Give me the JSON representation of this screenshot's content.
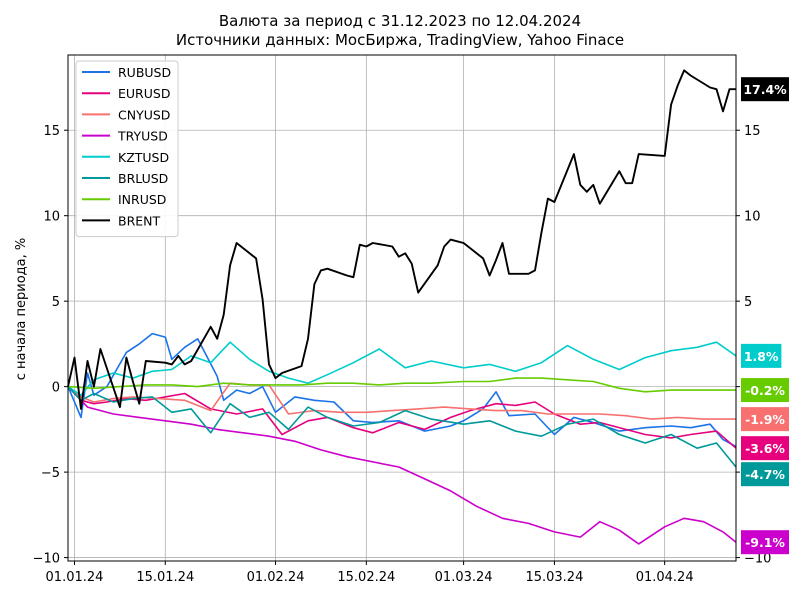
{
  "chart_data": {
    "type": "line",
    "title": "Валюта за период с 31.12.2023 по 12.04.2024",
    "subtitle": "Источники данных: МосБиржа, TradingView, Yahoo Finace",
    "ylabel": "с начала периода, %",
    "xlabel": "",
    "x_start": "2023-12-31",
    "x_end": "2024-04-12",
    "xlim": [
      "2023-12-31",
      "2024-04-12"
    ],
    "ylim": [
      -10.2,
      19.4
    ],
    "yticks": [
      -10,
      -5,
      0,
      5,
      10,
      15
    ],
    "ytick_labels": [
      "−10",
      "−5",
      "0",
      "5",
      "10",
      "15"
    ],
    "xticks": [
      "2024-01-01",
      "2024-01-15",
      "2024-02-01",
      "2024-02-15",
      "2024-03-01",
      "2024-03-15",
      "2024-04-01"
    ],
    "xtick_labels": [
      "01.01.24",
      "15.01.24",
      "01.02.24",
      "15.02.24",
      "01.03.24",
      "15.03.24",
      "01.04.24"
    ],
    "grid": true,
    "legend_position": "top-left",
    "series": [
      {
        "name": "RUBUSD",
        "color": "#1a73e8",
        "dates": [
          "2023-12-31",
          "2024-01-02",
          "2024-01-03",
          "2024-01-04",
          "2024-01-06",
          "2024-01-09",
          "2024-01-11",
          "2024-01-13",
          "2024-01-15",
          "2024-01-16",
          "2024-01-18",
          "2024-01-20",
          "2024-01-23",
          "2024-01-24",
          "2024-01-26",
          "2024-01-28",
          "2024-01-30",
          "2024-02-01",
          "2024-02-04",
          "2024-02-07",
          "2024-02-10",
          "2024-02-13",
          "2024-02-16",
          "2024-02-20",
          "2024-02-24",
          "2024-02-28",
          "2024-03-01",
          "2024-03-04",
          "2024-03-06",
          "2024-03-08",
          "2024-03-12",
          "2024-03-15",
          "2024-03-18",
          "2024-03-21",
          "2024-03-25",
          "2024-03-29",
          "2024-04-02",
          "2024-04-05",
          "2024-04-08",
          "2024-04-10",
          "2024-04-12"
        ],
        "values": [
          0,
          -1.8,
          0.8,
          -0.5,
          0,
          2.0,
          2.5,
          3.1,
          2.9,
          1.6,
          2.3,
          2.8,
          0.6,
          -0.8,
          -0.2,
          -0.4,
          0,
          -1.5,
          -0.6,
          -0.8,
          -0.9,
          -2.0,
          -2.1,
          -2.0,
          -2.6,
          -2.3,
          -2.0,
          -1.3,
          -0.3,
          -1.7,
          -1.6,
          -2.8,
          -1.8,
          -2.1,
          -2.6,
          -2.4,
          -2.3,
          -2.4,
          -2.2,
          -3.1,
          -3.5
        ]
      },
      {
        "name": "EURUSD",
        "color": "#e6007e",
        "dates": [
          "2023-12-31",
          "2024-01-02",
          "2024-01-04",
          "2024-01-06",
          "2024-01-09",
          "2024-01-12",
          "2024-01-15",
          "2024-01-18",
          "2024-01-22",
          "2024-01-26",
          "2024-01-30",
          "2024-02-02",
          "2024-02-06",
          "2024-02-09",
          "2024-02-13",
          "2024-02-16",
          "2024-02-20",
          "2024-02-24",
          "2024-02-28",
          "2024-03-02",
          "2024-03-06",
          "2024-03-09",
          "2024-03-12",
          "2024-03-15",
          "2024-03-19",
          "2024-03-22",
          "2024-03-26",
          "2024-03-29",
          "2024-04-02",
          "2024-04-05",
          "2024-04-09",
          "2024-04-12"
        ],
        "values": [
          0,
          -0.8,
          -1.0,
          -0.9,
          -0.7,
          -0.8,
          -0.6,
          -0.4,
          -1.3,
          -1.6,
          -1.3,
          -2.8,
          -2.0,
          -1.8,
          -2.4,
          -2.7,
          -2.1,
          -2.5,
          -1.8,
          -1.4,
          -1.0,
          -1.1,
          -0.9,
          -1.6,
          -2.2,
          -2.1,
          -2.5,
          -2.8,
          -3.0,
          -2.8,
          -2.6,
          -3.6
        ]
      },
      {
        "name": "CNYUSD",
        "color": "#f87070",
        "dates": [
          "2023-12-31",
          "2024-01-02",
          "2024-01-04",
          "2024-01-07",
          "2024-01-10",
          "2024-01-14",
          "2024-01-18",
          "2024-01-22",
          "2024-01-25",
          "2024-01-28",
          "2024-01-31",
          "2024-02-03",
          "2024-02-07",
          "2024-02-11",
          "2024-02-15",
          "2024-02-19",
          "2024-02-23",
          "2024-02-27",
          "2024-03-02",
          "2024-03-06",
          "2024-03-10",
          "2024-03-14",
          "2024-03-18",
          "2024-03-22",
          "2024-03-26",
          "2024-03-30",
          "2024-04-03",
          "2024-04-07",
          "2024-04-12"
        ],
        "values": [
          0,
          -0.6,
          -0.9,
          -0.7,
          -0.6,
          -0.7,
          -0.8,
          -1.4,
          0.2,
          0.1,
          0.1,
          -1.6,
          -1.4,
          -1.5,
          -1.5,
          -1.4,
          -1.3,
          -1.2,
          -1.3,
          -1.4,
          -1.4,
          -1.6,
          -1.6,
          -1.6,
          -1.7,
          -1.9,
          -1.8,
          -1.9,
          -1.9
        ]
      },
      {
        "name": "TRYUSD",
        "color": "#cc00cc",
        "dates": [
          "2023-12-31",
          "2024-01-03",
          "2024-01-07",
          "2024-01-11",
          "2024-01-15",
          "2024-01-19",
          "2024-01-23",
          "2024-01-27",
          "2024-01-31",
          "2024-02-04",
          "2024-02-08",
          "2024-02-12",
          "2024-02-16",
          "2024-02-20",
          "2024-02-24",
          "2024-02-28",
          "2024-03-03",
          "2024-03-07",
          "2024-03-11",
          "2024-03-15",
          "2024-03-19",
          "2024-03-22",
          "2024-03-25",
          "2024-03-28",
          "2024-04-01",
          "2024-04-04",
          "2024-04-07",
          "2024-04-10",
          "2024-04-12"
        ],
        "values": [
          0,
          -1.2,
          -1.6,
          -1.8,
          -2.0,
          -2.2,
          -2.5,
          -2.7,
          -2.9,
          -3.2,
          -3.7,
          -4.1,
          -4.4,
          -4.7,
          -5.4,
          -6.1,
          -7.0,
          -7.7,
          -8.0,
          -8.5,
          -8.8,
          -7.9,
          -8.4,
          -9.2,
          -8.2,
          -7.7,
          -7.9,
          -8.5,
          -9.1
        ]
      },
      {
        "name": "KZTUSD",
        "color": "#00cccc",
        "dates": [
          "2023-12-31",
          "2024-01-02",
          "2024-01-04",
          "2024-01-07",
          "2024-01-10",
          "2024-01-13",
          "2024-01-16",
          "2024-01-19",
          "2024-01-22",
          "2024-01-25",
          "2024-01-28",
          "2024-01-31",
          "2024-02-03",
          "2024-02-06",
          "2024-02-09",
          "2024-02-13",
          "2024-02-17",
          "2024-02-21",
          "2024-02-25",
          "2024-03-01",
          "2024-03-05",
          "2024-03-09",
          "2024-03-13",
          "2024-03-17",
          "2024-03-21",
          "2024-03-25",
          "2024-03-29",
          "2024-04-02",
          "2024-04-06",
          "2024-04-09",
          "2024-04-12"
        ],
        "values": [
          0,
          -0.5,
          0.4,
          0.8,
          0.5,
          0.9,
          1.0,
          1.8,
          1.4,
          2.6,
          1.6,
          0.9,
          0.5,
          0.2,
          0.7,
          1.4,
          2.2,
          1.1,
          1.5,
          1.1,
          1.3,
          0.9,
          1.4,
          2.4,
          1.6,
          1.0,
          1.7,
          2.1,
          2.3,
          2.6,
          1.8
        ]
      },
      {
        "name": "BRLUSD",
        "color": "#00999a",
        "dates": [
          "2023-12-31",
          "2024-01-02",
          "2024-01-04",
          "2024-01-07",
          "2024-01-10",
          "2024-01-13",
          "2024-01-16",
          "2024-01-19",
          "2024-01-22",
          "2024-01-25",
          "2024-01-28",
          "2024-01-31",
          "2024-02-03",
          "2024-02-06",
          "2024-02-09",
          "2024-02-13",
          "2024-02-17",
          "2024-02-21",
          "2024-02-25",
          "2024-03-01",
          "2024-03-05",
          "2024-03-09",
          "2024-03-13",
          "2024-03-17",
          "2024-03-21",
          "2024-03-25",
          "2024-03-29",
          "2024-04-02",
          "2024-04-06",
          "2024-04-09",
          "2024-04-12"
        ],
        "values": [
          0,
          -0.8,
          -0.4,
          -0.9,
          -0.7,
          -0.6,
          -1.5,
          -1.3,
          -2.7,
          -1.0,
          -1.8,
          -1.5,
          -2.5,
          -1.2,
          -1.8,
          -2.3,
          -2.1,
          -1.4,
          -1.9,
          -2.2,
          -2.0,
          -2.6,
          -2.9,
          -2.2,
          -1.9,
          -2.8,
          -3.3,
          -2.8,
          -3.6,
          -3.3,
          -4.7
        ]
      },
      {
        "name": "INRUSD",
        "color": "#66cc00",
        "dates": [
          "2023-12-31",
          "2024-01-04",
          "2024-01-08",
          "2024-01-12",
          "2024-01-16",
          "2024-01-20",
          "2024-01-24",
          "2024-01-28",
          "2024-02-01",
          "2024-02-05",
          "2024-02-09",
          "2024-02-13",
          "2024-02-17",
          "2024-02-21",
          "2024-02-25",
          "2024-03-01",
          "2024-03-05",
          "2024-03-09",
          "2024-03-13",
          "2024-03-17",
          "2024-03-21",
          "2024-03-25",
          "2024-03-29",
          "2024-04-02",
          "2024-04-06",
          "2024-04-09",
          "2024-04-12"
        ],
        "values": [
          0,
          -0.1,
          0,
          0.1,
          0.1,
          0.0,
          0.2,
          0.1,
          0.1,
          0.1,
          0.2,
          0.2,
          0.1,
          0.2,
          0.2,
          0.3,
          0.3,
          0.5,
          0.5,
          0.4,
          0.3,
          -0.1,
          -0.3,
          -0.2,
          -0.2,
          -0.2,
          -0.2
        ]
      },
      {
        "name": "BRENT",
        "color": "#000000",
        "dates": [
          "2023-12-31",
          "2024-01-01",
          "2024-01-02",
          "2024-01-03",
          "2024-01-04",
          "2024-01-05",
          "2024-01-08",
          "2024-01-09",
          "2024-01-10",
          "2024-01-11",
          "2024-01-12",
          "2024-01-15",
          "2024-01-16",
          "2024-01-17",
          "2024-01-18",
          "2024-01-19",
          "2024-01-22",
          "2024-01-23",
          "2024-01-24",
          "2024-01-25",
          "2024-01-26",
          "2024-01-29",
          "2024-01-30",
          "2024-01-31",
          "2024-02-01",
          "2024-02-02",
          "2024-02-05",
          "2024-02-06",
          "2024-02-07",
          "2024-02-08",
          "2024-02-09",
          "2024-02-12",
          "2024-02-13",
          "2024-02-14",
          "2024-02-15",
          "2024-02-16",
          "2024-02-19",
          "2024-02-20",
          "2024-02-21",
          "2024-02-22",
          "2024-02-23",
          "2024-02-26",
          "2024-02-27",
          "2024-02-28",
          "2024-02-29",
          "2024-03-01",
          "2024-03-04",
          "2024-03-05",
          "2024-03-06",
          "2024-03-07",
          "2024-03-08",
          "2024-03-11",
          "2024-03-12",
          "2024-03-13",
          "2024-03-14",
          "2024-03-15",
          "2024-03-18",
          "2024-03-19",
          "2024-03-20",
          "2024-03-21",
          "2024-03-22",
          "2024-03-25",
          "2024-03-26",
          "2024-03-27",
          "2024-03-28",
          "2024-04-01",
          "2024-04-02",
          "2024-04-03",
          "2024-04-04",
          "2024-04-05",
          "2024-04-08",
          "2024-04-09",
          "2024-04-10",
          "2024-04-11",
          "2024-04-12"
        ],
        "values": [
          0,
          1.7,
          -1.3,
          1.5,
          0,
          2.2,
          -1.2,
          1.7,
          0.3,
          -1.0,
          1.5,
          1.4,
          1.3,
          1.8,
          1.3,
          1.5,
          3.5,
          2.8,
          4.2,
          7.1,
          8.4,
          7.5,
          5.1,
          1.3,
          0.5,
          0.8,
          1.2,
          2.8,
          6.0,
          6.8,
          6.9,
          6.5,
          6.4,
          8.3,
          8.2,
          8.4,
          8.2,
          7.6,
          7.8,
          7.2,
          5.5,
          7.1,
          8.2,
          8.6,
          8.5,
          8.4,
          7.5,
          6.5,
          7.4,
          8.4,
          6.6,
          6.6,
          6.8,
          9.0,
          11.0,
          10.8,
          13.6,
          11.8,
          11.4,
          11.8,
          10.7,
          12.6,
          11.9,
          11.9,
          13.6,
          13.5,
          16.5,
          17.6,
          18.5,
          18.2,
          17.5,
          17.4,
          16.1,
          17.4,
          17.4
        ]
      }
    ],
    "end_labels": [
      {
        "text": "17.4%",
        "value": 17.4,
        "color": "#000000"
      },
      {
        "text": "1.8%",
        "value": 1.8,
        "color": "#00cccc"
      },
      {
        "text": "-0.2%",
        "value": -0.2,
        "color": "#66cc00"
      },
      {
        "text": "-1.9%",
        "value": -1.9,
        "color": "#f87070"
      },
      {
        "text": "-3.6%",
        "value": -3.6,
        "color": "#e6007e"
      },
      {
        "text": "-4.7%",
        "value": -4.7,
        "color": "#00999a"
      },
      {
        "text": "-9.1%",
        "value": -9.1,
        "color": "#cc00cc"
      }
    ]
  }
}
